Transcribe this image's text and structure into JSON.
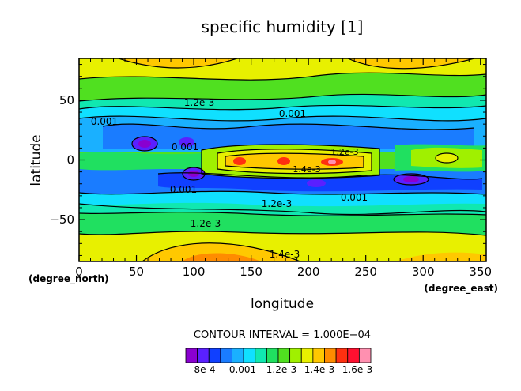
{
  "chart_data": {
    "type": "heatmap",
    "title": "specific humidity [1]",
    "xlabel": "longitude",
    "ylabel": "latitude",
    "x_unit": "(degree_east)",
    "y_unit": "(degree_north)",
    "xlim": [
      0,
      355
    ],
    "ylim": [
      -85,
      85
    ],
    "x_ticks": [
      "0",
      "50",
      "100",
      "150",
      "200",
      "250",
      "300",
      "350"
    ],
    "y_ticks": [
      "50",
      "0",
      "−50"
    ],
    "contour_interval_label": "CONTOUR INTERVAL = 1.000E−04",
    "contour_labels": [
      "0.001",
      "1.2e-3",
      "0.001",
      "0.001",
      "1.4e-3",
      "1.2e-3",
      "0.001",
      "0.001",
      "1.2e-3",
      "1.4e-3",
      "1.2e-3"
    ],
    "colorbar": {
      "tick_labels": [
        "8e-4",
        "0.001",
        "1.2e-3",
        "1.4e-3",
        "1.6e-3"
      ],
      "colors": [
        "#8a00d0",
        "#5a20ff",
        "#1040ff",
        "#1a7cff",
        "#1ab0ff",
        "#10e0ff",
        "#10e8b0",
        "#20e060",
        "#50e020",
        "#a0f000",
        "#e8f000",
        "#ffc800",
        "#ff8c00",
        "#ff3010",
        "#ff1030",
        "#ff90b0"
      ]
    },
    "grid": false
  }
}
